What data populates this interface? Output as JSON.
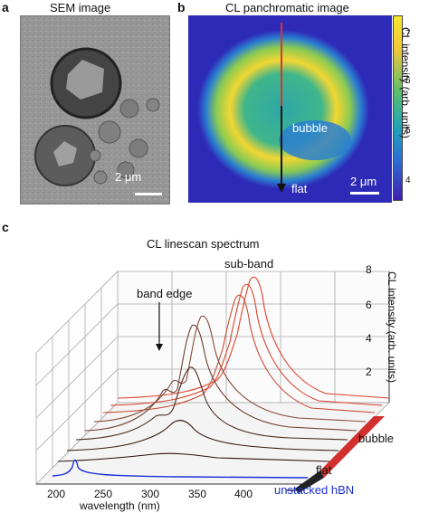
{
  "panel_a": {
    "letter": "a",
    "title": "SEM image",
    "scalebar": "2 μm"
  },
  "panel_b": {
    "letter": "b",
    "title": "CL panchromatic image",
    "scalebar": "2 μm",
    "labels": {
      "bubble": "bubble",
      "flat": "flat"
    },
    "colorbar": {
      "ticks": [
        "7",
        "6",
        "5",
        "4"
      ],
      "label": "CL intensity (arb. units)"
    }
  },
  "panel_c": {
    "letter": "c",
    "title": "CL linescan spectrum",
    "annotations": {
      "band_edge": "band edge",
      "sub_band": "sub-band",
      "bubble": "bubble",
      "flat": "flat",
      "unstacked": "unstacked hBN"
    },
    "x_ticks": [
      "200",
      "250",
      "300",
      "350",
      "400"
    ],
    "xlabel": "wavelength (nm)",
    "z_ticks": [
      "2",
      "4",
      "6",
      "8"
    ],
    "zlabel": "CL intensity (arb. units)",
    "colors": {
      "near": "#3a1a12",
      "far": "#e0402a",
      "unstacked": "#1b2fd6"
    }
  }
}
